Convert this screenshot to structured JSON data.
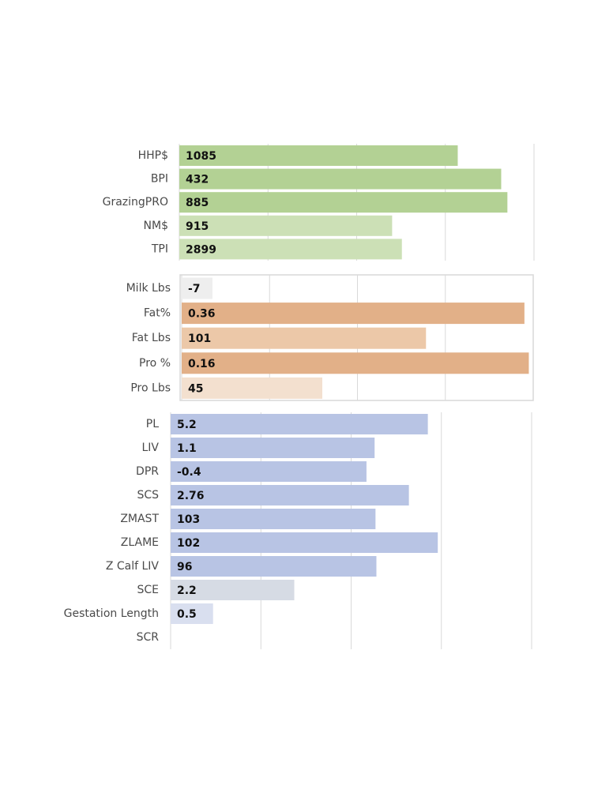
{
  "chart_data": [
    {
      "type": "bar",
      "orientation": "horizontal",
      "grid": true,
      "border": false,
      "categories": [
        "HHP$",
        "BPI",
        "GrazingPRO",
        "NM$",
        "TPI"
      ],
      "values": [
        3.14,
        3.63,
        3.7,
        2.4,
        2.51
      ],
      "bar_labels": [
        "1085",
        "432",
        "885",
        "915",
        "2899"
      ],
      "colors": [
        "#b3d194",
        "#b3d194",
        "#b3d194",
        "#cce0b6",
        "#cce0b6"
      ],
      "xlim": [
        0,
        4
      ],
      "xticks": [
        0,
        1,
        2,
        3,
        4
      ]
    },
    {
      "type": "bar",
      "orientation": "horizontal",
      "grid": true,
      "border": true,
      "categories": [
        "Milk Lbs",
        "Fat%",
        "Fat Lbs",
        "Pro %",
        "Pro Lbs"
      ],
      "values": [
        0.35,
        3.9,
        2.78,
        3.95,
        1.6
      ],
      "bar_labels": [
        "-7",
        "0.36",
        "101",
        "0.16",
        "45"
      ],
      "colors": [
        "#eeeeee",
        "#e2b088",
        "#ecc8a8",
        "#e2b088",
        "#f3e0cf"
      ],
      "xlim": [
        0,
        4
      ],
      "xticks": [
        0,
        1,
        2,
        3,
        4
      ]
    },
    {
      "type": "bar",
      "orientation": "horizontal",
      "grid": true,
      "border": false,
      "categories": [
        "PL",
        "LIV",
        "DPR",
        "SCS",
        "ZMAST",
        "ZLAME",
        "Z Calf LIV",
        "SCE",
        "Gestation Length",
        "SCR"
      ],
      "values": [
        2.85,
        2.26,
        2.17,
        2.64,
        2.27,
        2.96,
        2.28,
        1.37,
        0.47,
        null
      ],
      "bar_labels": [
        "5.2",
        "1.1",
        "-0.4",
        "2.76",
        "103",
        "102",
        "96",
        "2.2",
        "0.5",
        null
      ],
      "colors": [
        "#b8c4e4",
        "#b8c4e4",
        "#b8c4e4",
        "#b8c4e4",
        "#b8c4e4",
        "#b8c4e4",
        "#b8c4e4",
        "#d6dbe4",
        "#d9dfef",
        "#d9dfef"
      ],
      "xlim": [
        0,
        4
      ],
      "xticks": [
        0,
        1,
        2,
        3,
        4
      ]
    }
  ]
}
